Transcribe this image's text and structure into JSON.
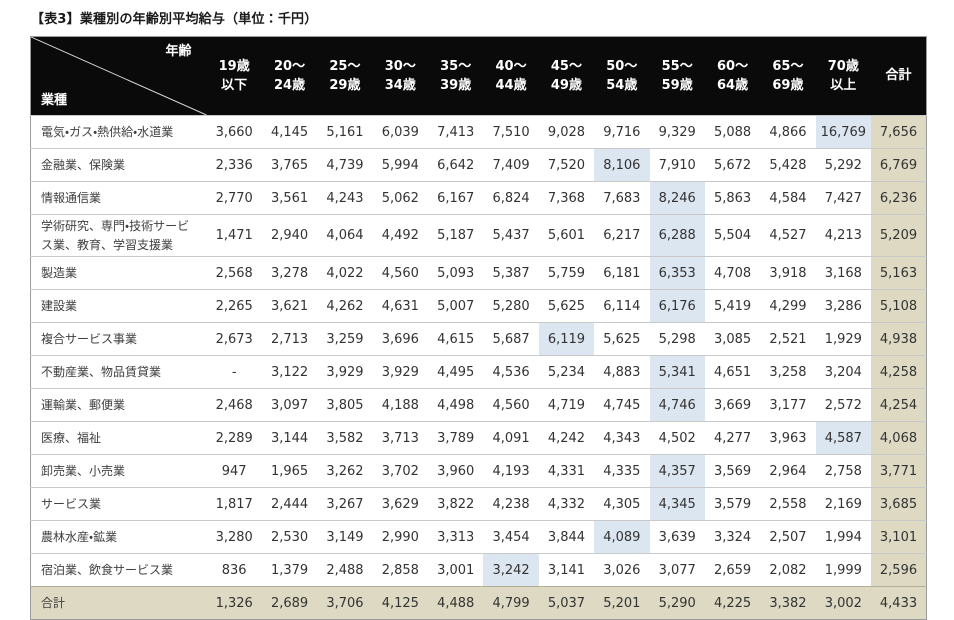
{
  "title": "【表3】業種別の年齢別平均給与（単位：千円）",
  "colors": {
    "header_bg": "#0a0a0a",
    "highlight": "#dce6f1",
    "total_bg": "#ddd9c3",
    "row_border": "#c9c9c9",
    "outer_border": "#9b9b9b"
  },
  "table": {
    "corner": {
      "top_right": "年齢",
      "bottom_left": "業種"
    },
    "age_columns": [
      "19歳\n以下",
      "20〜\n24歳",
      "25〜\n29歳",
      "30〜\n34歳",
      "35〜\n39歳",
      "40〜\n44歳",
      "45〜\n49歳",
      "50〜\n54歳",
      "55〜\n59歳",
      "60〜\n64歳",
      "65〜\n69歳",
      "70歳\n以上"
    ],
    "total_label": "合計",
    "rows": [
      {
        "industry": "電気・ガス・熱供給・水道業",
        "values": [
          "3,660",
          "4,145",
          "5,161",
          "6,039",
          "7,413",
          "7,510",
          "9,028",
          "9,716",
          "9,329",
          "5,088",
          "4,866",
          "16,769"
        ],
        "total": "7,656",
        "highlight": 11
      },
      {
        "industry": "金融業、保険業",
        "values": [
          "2,336",
          "3,765",
          "4,739",
          "5,994",
          "6,642",
          "7,409",
          "7,520",
          "8,106",
          "7,910",
          "5,672",
          "5,428",
          "5,292"
        ],
        "total": "6,769",
        "highlight": 7
      },
      {
        "industry": "情報通信業",
        "values": [
          "2,770",
          "3,561",
          "4,243",
          "5,062",
          "6,167",
          "6,824",
          "7,368",
          "7,683",
          "8,246",
          "5,863",
          "4,584",
          "7,427"
        ],
        "total": "6,236",
        "highlight": 8
      },
      {
        "industry": "学術研究、専門・技術サービス業、教育、学習支援業",
        "values": [
          "1,471",
          "2,940",
          "4,064",
          "4,492",
          "5,187",
          "5,437",
          "5,601",
          "6,217",
          "6,288",
          "5,504",
          "4,527",
          "4,213"
        ],
        "total": "5,209",
        "highlight": 8
      },
      {
        "industry": "製造業",
        "values": [
          "2,568",
          "3,278",
          "4,022",
          "4,560",
          "5,093",
          "5,387",
          "5,759",
          "6,181",
          "6,353",
          "4,708",
          "3,918",
          "3,168"
        ],
        "total": "5,163",
        "highlight": 8
      },
      {
        "industry": "建設業",
        "values": [
          "2,265",
          "3,621",
          "4,262",
          "4,631",
          "5,007",
          "5,280",
          "5,625",
          "6,114",
          "6,176",
          "5,419",
          "4,299",
          "3,286"
        ],
        "total": "5,108",
        "highlight": 8
      },
      {
        "industry": "複合サービス事業",
        "values": [
          "2,673",
          "2,713",
          "3,259",
          "3,696",
          "4,615",
          "5,687",
          "6,119",
          "5,625",
          "5,298",
          "3,085",
          "2,521",
          "1,929"
        ],
        "total": "4,938",
        "highlight": 6
      },
      {
        "industry": "不動産業、物品賃貸業",
        "values": [
          "-",
          "3,122",
          "3,929",
          "3,929",
          "4,495",
          "4,536",
          "5,234",
          "4,883",
          "5,341",
          "4,651",
          "3,258",
          "3,204"
        ],
        "total": "4,258",
        "highlight": 8
      },
      {
        "industry": "運輸業、郵便業",
        "values": [
          "2,468",
          "3,097",
          "3,805",
          "4,188",
          "4,498",
          "4,560",
          "4,719",
          "4,745",
          "4,746",
          "3,669",
          "3,177",
          "2,572"
        ],
        "total": "4,254",
        "highlight": 8
      },
      {
        "industry": "医療、福祉",
        "values": [
          "2,289",
          "3,144",
          "3,582",
          "3,713",
          "3,789",
          "4,091",
          "4,242",
          "4,343",
          "4,502",
          "4,277",
          "3,963",
          "4,587"
        ],
        "total": "4,068",
        "highlight": 11
      },
      {
        "industry": "卸売業、小売業",
        "values": [
          "947",
          "1,965",
          "3,262",
          "3,702",
          "3,960",
          "4,193",
          "4,331",
          "4,335",
          "4,357",
          "3,569",
          "2,964",
          "2,758"
        ],
        "total": "3,771",
        "highlight": 8
      },
      {
        "industry": "サービス業",
        "values": [
          "1,817",
          "2,444",
          "3,267",
          "3,629",
          "3,822",
          "4,238",
          "4,332",
          "4,305",
          "4,345",
          "3,579",
          "2,558",
          "2,169"
        ],
        "total": "3,685",
        "highlight": 8
      },
      {
        "industry": "農林水産・鉱業",
        "values": [
          "3,280",
          "2,530",
          "3,149",
          "2,990",
          "3,313",
          "3,454",
          "3,844",
          "4,089",
          "3,639",
          "3,324",
          "2,507",
          "1,994"
        ],
        "total": "3,101",
        "highlight": 7
      },
      {
        "industry": "宿泊業、飲食サービス業",
        "values": [
          "836",
          "1,379",
          "2,488",
          "2,858",
          "3,001",
          "3,242",
          "3,141",
          "3,026",
          "3,077",
          "2,659",
          "2,082",
          "1,999"
        ],
        "total": "2,596",
        "highlight": 5
      }
    ],
    "footer": {
      "label": "合計",
      "values": [
        "1,326",
        "2,689",
        "3,706",
        "4,125",
        "4,488",
        "4,799",
        "5,037",
        "5,201",
        "5,290",
        "4,225",
        "3,382",
        "3,002"
      ],
      "total": "4,433"
    }
  }
}
